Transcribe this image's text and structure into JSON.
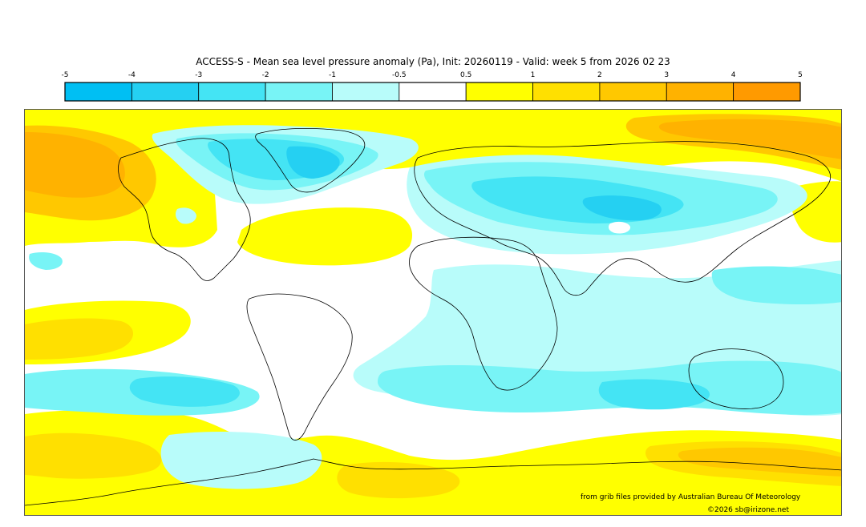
{
  "title": "ACCESS-S - Mean sea level pressure anomaly (Pa), Init: 20260119 - Valid: week 5 from 2026 02 23",
  "colorbar": {
    "ticks": [
      "-5",
      "-4",
      "-3",
      "-2",
      "-1",
      "-0.5",
      "0.5",
      "1",
      "2",
      "3",
      "4",
      "5"
    ],
    "colors": [
      "#00bff3",
      "#25d0f2",
      "#44e4f4",
      "#78f4f6",
      "#b8fcfa",
      "#ffffff",
      "#ffff00",
      "#ffe000",
      "#ffc800",
      "#ffb200",
      "#ff9a00"
    ]
  },
  "credits": {
    "source": "from grib files provided by Australian Bureau Of Meteorology",
    "copyright": "©2026 sb@irizone.net"
  },
  "colors": {
    "neg1": "#b8fcfa",
    "neg2": "#78f4f6",
    "neg3": "#44e4f4",
    "neg4": "#25d0f2",
    "pos1": "#ffff00",
    "pos2": "#ffe000",
    "pos3": "#ffc800",
    "pos4": "#ffb200",
    "pos5": "#ff9a00"
  }
}
